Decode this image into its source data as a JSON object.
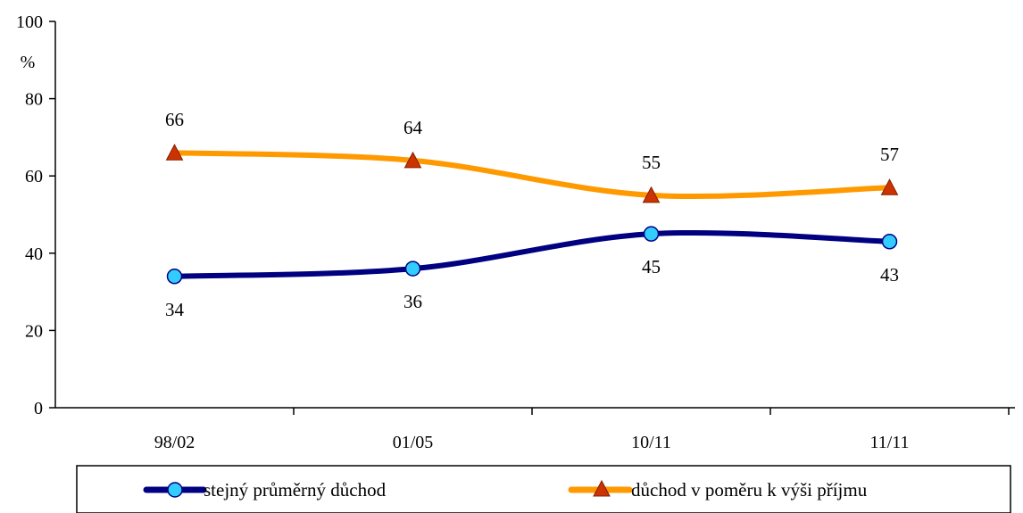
{
  "chart_data": {
    "type": "line",
    "ylabel": "%",
    "ylim": [
      0,
      100
    ],
    "yticks": [
      0,
      20,
      40,
      60,
      80,
      100
    ],
    "categories": [
      "98/02",
      "01/05",
      "10/11",
      "11/11"
    ],
    "grid": false,
    "legend_position": "bottom",
    "series": [
      {
        "name": "stejný průměrný důchod",
        "values": [
          34,
          36,
          45,
          43
        ],
        "labels": [
          "34",
          "36",
          "45",
          "43"
        ],
        "label_position": "below",
        "line_color": "#000080",
        "marker": "circle",
        "marker_color": "#33CCFF"
      },
      {
        "name": "důchod v poměru k výši příjmu",
        "values": [
          66,
          64,
          55,
          57
        ],
        "labels": [
          "66",
          "64",
          "55",
          "57"
        ],
        "label_position": "above",
        "line_color": "#FF9900",
        "marker": "triangle",
        "marker_color": "#CC3300"
      }
    ]
  }
}
